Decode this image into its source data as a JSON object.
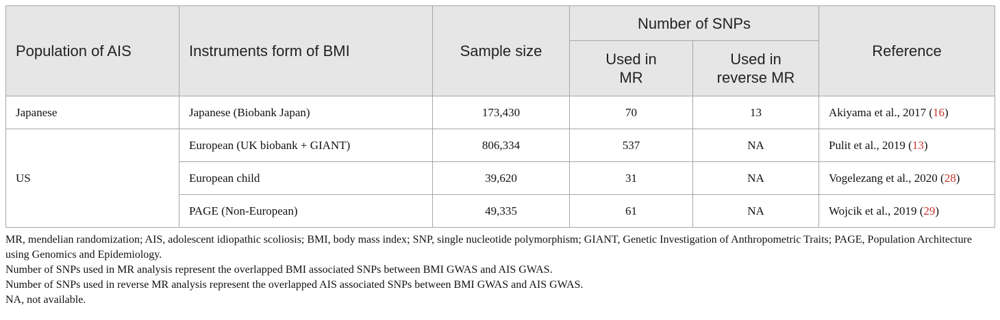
{
  "header": {
    "population": "Population of AIS",
    "instruments": "Instruments form of BMI",
    "sample_size": "Sample size",
    "num_snps": "Number of SNPs",
    "used_mr": "Used in MR",
    "used_reverse_mr": "Used in reverse MR",
    "reference": "Reference"
  },
  "rows": [
    {
      "population": "Japanese",
      "instrument": "Japanese (Biobank Japan)",
      "sample": "173,430",
      "mr": "70",
      "rmr": "13",
      "ref_text": "Akiyama et al., 2017 (",
      "ref_num": "16",
      "ref_close": ")"
    },
    {
      "population": "US",
      "instrument": "European (UK biobank + GIANT)",
      "sample": "806,334",
      "mr": "537",
      "rmr": "NA",
      "ref_text": "Pulit et al., 2019 (",
      "ref_num": "13",
      "ref_close": ")"
    },
    {
      "instrument": "European child",
      "sample": "39,620",
      "mr": "31",
      "rmr": "NA",
      "ref_text": "Vogelezang et al., 2020 (",
      "ref_num": "28",
      "ref_close": ")"
    },
    {
      "instrument": "PAGE (Non-European)",
      "sample": "49,335",
      "mr": "61",
      "rmr": "NA",
      "ref_text": "Wojcik et al., 2019 (",
      "ref_num": "29",
      "ref_close": ")"
    }
  ],
  "footnotes": [
    "MR, mendelian randomization; AIS, adolescent idiopathic scoliosis; BMI, body mass index; SNP, single nucleotide polymorphism; GIANT, Genetic Investigation of Anthropometric Traits; PAGE, Population Architecture using Genomics and Epidemiology.",
    "Number of SNPs used in MR analysis represent the overlapped BMI associated SNPs between BMI GWAS and AIS GWAS.",
    "Number of SNPs used in reverse MR analysis represent the overlapped AIS associated SNPs between BMI GWAS and AIS GWAS.",
    "NA, not available."
  ],
  "colors": {
    "header_bg": "#e6e6e6",
    "border": "#a6a6a6",
    "reference_link": "#c8322a"
  }
}
